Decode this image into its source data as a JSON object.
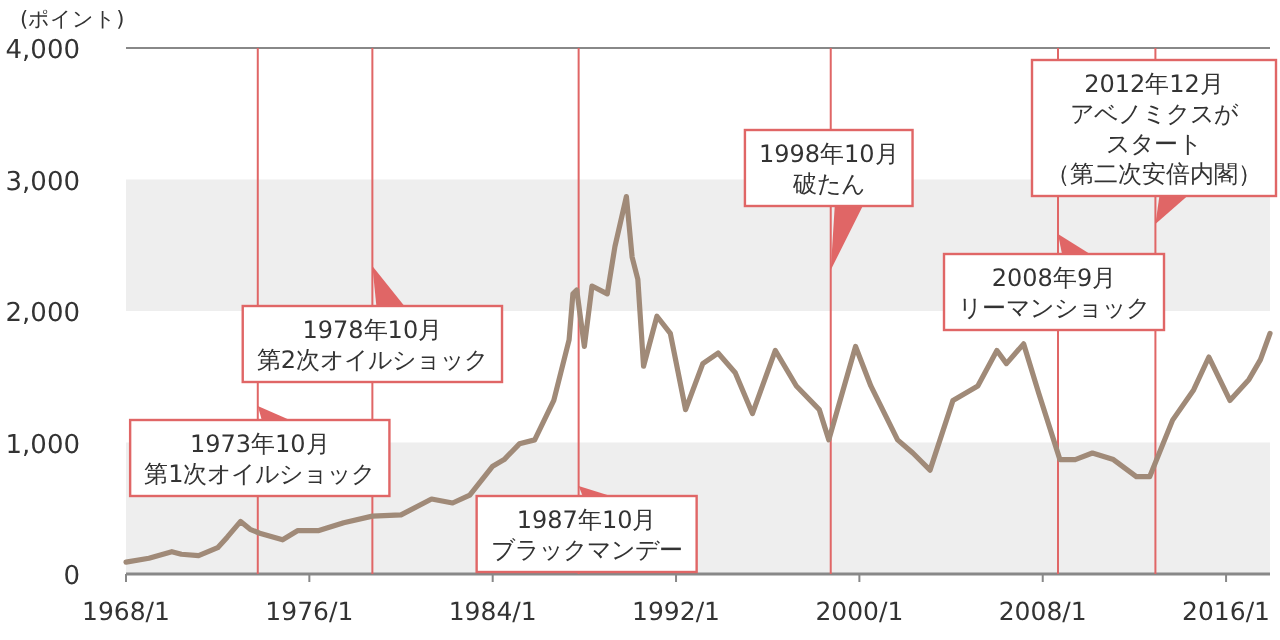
{
  "chart_data": {
    "type": "line",
    "ylabel": "(ポイント)",
    "xlim": [
      "1968-01",
      "2017-12"
    ],
    "xticks": [
      {
        "value": "1968-01",
        "label": "1968/1"
      },
      {
        "value": "1976-01",
        "label": "1976/1"
      },
      {
        "value": "1984-01",
        "label": "1984/1"
      },
      {
        "value": "1992-01",
        "label": "1992/1"
      },
      {
        "value": "2000-01",
        "label": "2000/1"
      },
      {
        "value": "2008-01",
        "label": "2008/1"
      },
      {
        "value": "2016-01",
        "label": "2016/1"
      }
    ],
    "ylim": [
      0,
      4000
    ],
    "yticks": [
      0,
      {
        "value": 1000,
        "label": "1,000"
      },
      {
        "value": 2000,
        "label": "2,000"
      },
      {
        "value": 3000,
        "label": "3,000"
      },
      {
        "value": 4000,
        "label": "4,000"
      }
    ],
    "grid": false,
    "bands": [
      {
        "axis": "y",
        "from": 0,
        "to": 1000,
        "color": "#eeeeee"
      },
      {
        "axis": "y",
        "from": 2000,
        "to": 3000,
        "color": "#eeeeee"
      }
    ],
    "ref_lines": [
      {
        "axis": "x",
        "value": "1973-10",
        "label": "1973年10月第1次オイルショック",
        "color": "#e06666"
      },
      {
        "axis": "x",
        "value": "1978-10",
        "label": "1978年10月第2次オイルショック",
        "color": "#e06666"
      },
      {
        "axis": "x",
        "value": "1987-10",
        "label": "1987年10月ブラックマンデー",
        "color": "#e06666"
      },
      {
        "axis": "x",
        "value": "1998-10",
        "label": "1998年10月破たん",
        "color": "#e06666"
      },
      {
        "axis": "x",
        "value": "2008-09",
        "label": "2008年9月リーマンショック",
        "color": "#e06666"
      },
      {
        "axis": "x",
        "value": "2012-12",
        "label": "2012年12月アベノミクスがスタート（第二次安倍内閣）",
        "color": "#e06666"
      }
    ],
    "series": [
      {
        "color": "#a08a78",
        "x": [
          "1968-01",
          "1969-01",
          "1970-01",
          "1970-06",
          "1971-03",
          "1972-01",
          "1972-06",
          "1973-01",
          "1973-06",
          "1973-11",
          "1974-11",
          "1975-07",
          "1976-06",
          "1977-07",
          "1978-10",
          "1980-01",
          "1981-05",
          "1982-04",
          "1983-01",
          "1984-01",
          "1984-07",
          "1985-03",
          "1985-11",
          "1986-09",
          "1987-05",
          "1987-07",
          "1987-09",
          "1988-01",
          "1988-05",
          "1989-01",
          "1989-05",
          "1989-11",
          "1990-02",
          "1990-05",
          "1990-08",
          "1991-03",
          "1991-10",
          "1992-06",
          "1993-03",
          "1993-11",
          "1994-08",
          "1995-05",
          "1996-05",
          "1997-04",
          "1998-04",
          "1998-09",
          "1999-11",
          "2000-07",
          "2001-09",
          "2002-05",
          "2003-02",
          "2004-02",
          "2005-03",
          "2006-01",
          "2006-06",
          "2007-03",
          "2007-11",
          "2008-10",
          "2009-06",
          "2010-03",
          "2011-02",
          "2012-02",
          "2012-09",
          "2013-09",
          "2014-08",
          "2015-04",
          "2016-03",
          "2017-01",
          "2017-07",
          "2017-12"
        ],
        "values": [
          90,
          120,
          170,
          150,
          140,
          200,
          280,
          400,
          340,
          310,
          260,
          330,
          330,
          390,
          440,
          450,
          570,
          540,
          600,
          820,
          870,
          990,
          1020,
          1320,
          1780,
          2130,
          2160,
          1730,
          2190,
          2130,
          2490,
          2870,
          2410,
          2240,
          1580,
          1960,
          1830,
          1250,
          1600,
          1680,
          1530,
          1220,
          1700,
          1430,
          1250,
          1020,
          1730,
          1430,
          1020,
          920,
          790,
          1320,
          1430,
          1700,
          1600,
          1750,
          1370,
          870,
          870,
          920,
          870,
          740,
          740,
          1170,
          1400,
          1650,
          1320,
          1480,
          1630,
          1830
        ]
      }
    ]
  }
}
